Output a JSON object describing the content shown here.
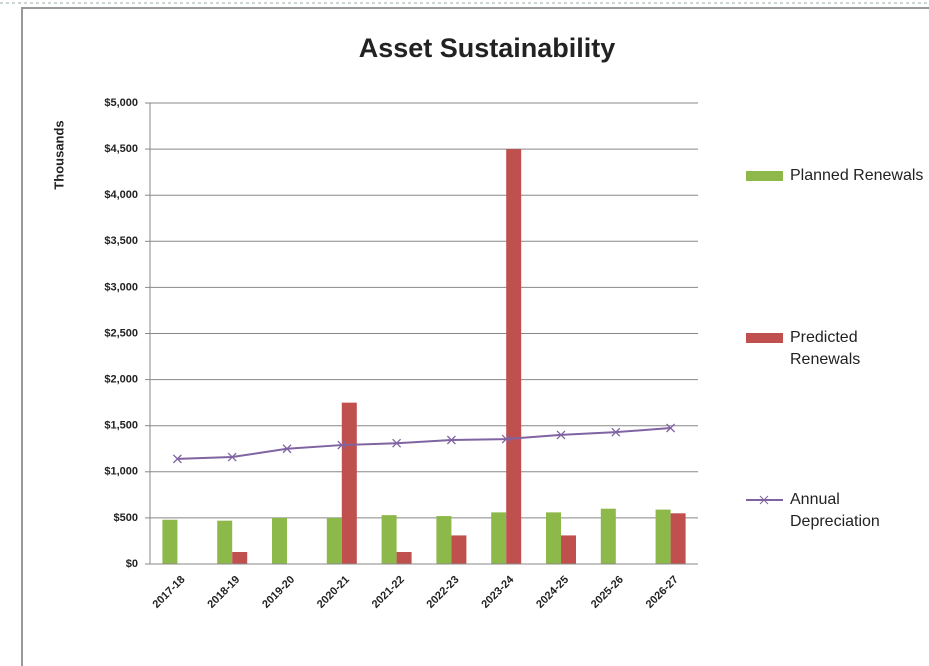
{
  "chart_data": {
    "type": "bar",
    "title": "Asset Sustainability",
    "y_label": "Thousands",
    "categories": [
      "2017-18",
      "2018-19",
      "2019-20",
      "2020-21",
      "2021-22",
      "2022-23",
      "2023-24",
      "2024-25",
      "2025-26",
      "2026-27"
    ],
    "series": [
      {
        "name": "Planned Renewals",
        "type": "bar",
        "color": "#8db84a",
        "values": [
          480,
          470,
          500,
          500,
          530,
          520,
          560,
          560,
          600,
          590
        ]
      },
      {
        "name": "Predicted Renewals",
        "type": "bar",
        "color": "#c0504d",
        "values": [
          0,
          130,
          0,
          1750,
          130,
          310,
          4500,
          310,
          0,
          550
        ]
      },
      {
        "name": "Annual Depreciation",
        "type": "line",
        "color": "#8064a2",
        "values": [
          1140,
          1160,
          1250,
          1290,
          1310,
          1345,
          1355,
          1400,
          1430,
          1475
        ]
      }
    ],
    "ylim": [
      0,
      5000
    ],
    "yticks": [
      {
        "value": 0,
        "label": "$0"
      },
      {
        "value": 500,
        "label": "$500"
      },
      {
        "value": 1000,
        "label": "$1,000"
      },
      {
        "value": 1500,
        "label": "$1,500"
      },
      {
        "value": 2000,
        "label": "$2,000"
      },
      {
        "value": 2500,
        "label": "$2,500"
      },
      {
        "value": 3000,
        "label": "$3,000"
      },
      {
        "value": 3500,
        "label": "$3,500"
      },
      {
        "value": 4000,
        "label": "$4,000"
      },
      {
        "value": 4500,
        "label": "$4,500"
      },
      {
        "value": 5000,
        "label": "$5,000"
      }
    ],
    "grid": true,
    "legend": "right"
  }
}
